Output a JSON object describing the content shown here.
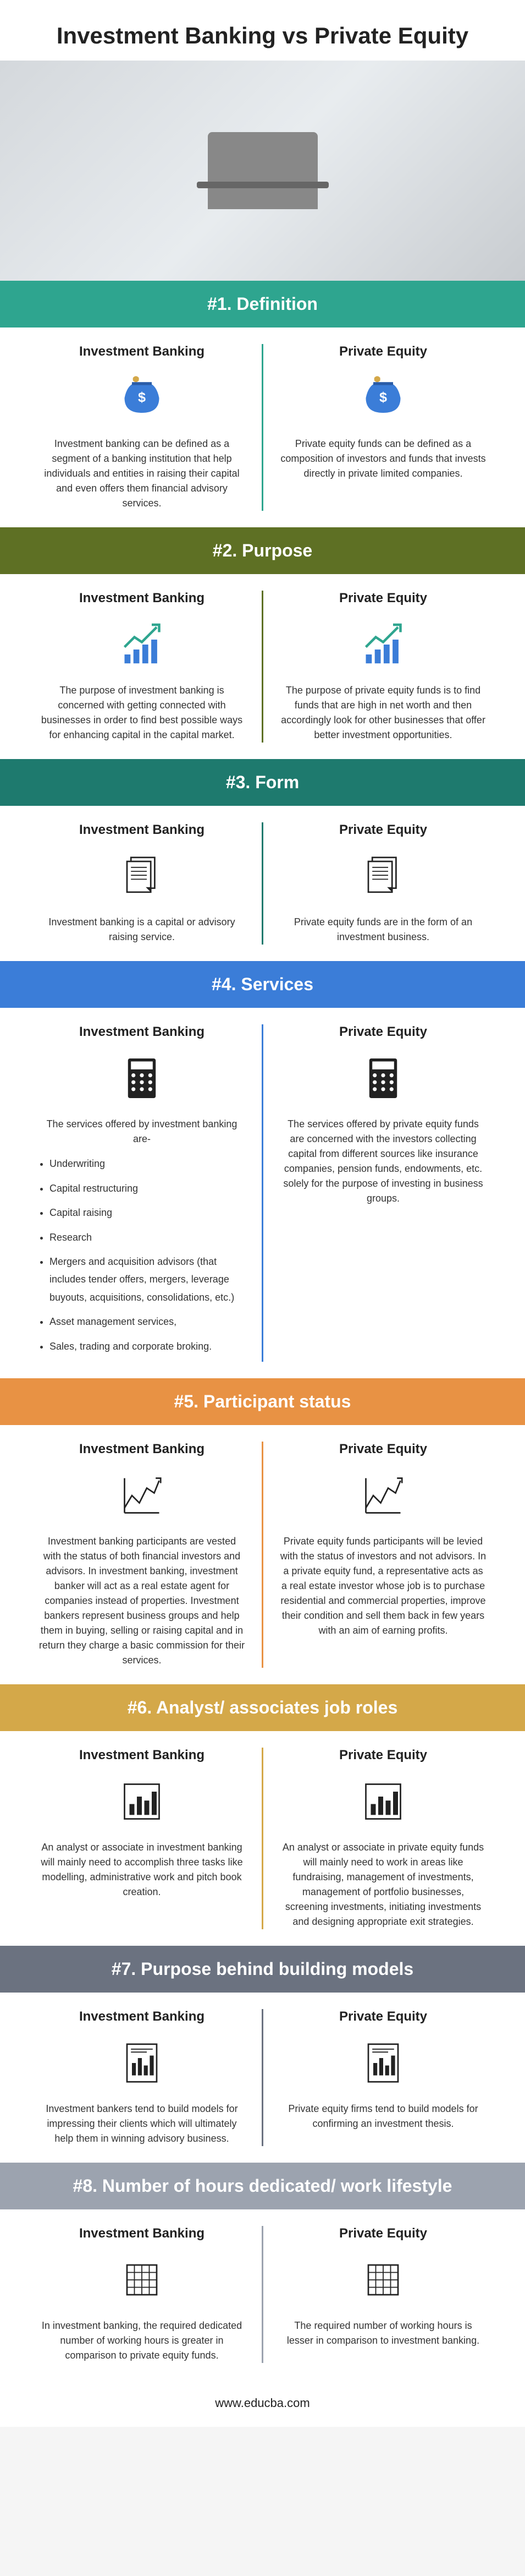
{
  "title": "Investment Banking vs Private Equity",
  "footer": "www.educba.com",
  "colors": {
    "teal": "#2ea58f",
    "olive": "#5e7024",
    "darkteal": "#1e7a6e",
    "blue": "#3b7dd8",
    "orange": "#e89244",
    "gold": "#d4a849",
    "gray": "#6b7280",
    "lightgray": "#9ca3af"
  },
  "column_labels": {
    "left": "Investment Banking",
    "right": "Private Equity"
  },
  "sections": [
    {
      "id": "definition",
      "heading": "#1. Definition",
      "header_bg": "teal",
      "divider_bg": "teal",
      "icon": "moneybag",
      "left": "Investment banking can be defined as a segment of a banking institution that help individuals and entities in raising their capital and even offers them financial advisory services.",
      "right": "Private equity funds can be defined as a composition of investors and funds that invests directly in private limited companies."
    },
    {
      "id": "purpose",
      "heading": "#2. Purpose",
      "header_bg": "olive",
      "divider_bg": "olive",
      "icon": "arrowchart",
      "left": "The purpose of investment banking is concerned with getting connected with businesses in order to find best possible ways for enhancing capital in the capital market.",
      "right": "The purpose of private equity funds is to find funds that are high in net worth and then accordingly look for other businesses that offer better investment opportunities."
    },
    {
      "id": "form",
      "heading": "#3. Form",
      "header_bg": "darkteal",
      "divider_bg": "darkteal",
      "icon": "documents",
      "left": "Investment banking is a capital or advisory raising service.",
      "right": "Private equity funds are in the form of an investment business."
    },
    {
      "id": "services",
      "heading": "#4. Services",
      "header_bg": "blue",
      "divider_bg": "blue",
      "icon": "calculator",
      "left_intro": "The services offered by investment banking are-",
      "left_list": [
        "Underwriting",
        "Capital restructuring",
        "Capital raising",
        "Research",
        "Mergers and acquisition advisors (that includes tender offers, mergers, leverage buyouts, acquisitions, consolidations, etc.)",
        "Asset management services,",
        "Sales, trading and corporate broking."
      ],
      "right": "The services offered by private equity funds are concerned with the investors collecting capital from different sources like insurance companies, pension funds, endowments, etc. solely for the purpose of investing in business groups."
    },
    {
      "id": "participant",
      "heading": "#5. Participant status",
      "header_bg": "orange",
      "divider_bg": "orange",
      "icon": "linechart",
      "left": "Investment banking participants are vested with the status of both financial investors and advisors. In investment banking, investment banker will act as a real estate agent for companies instead of properties. Investment bankers represent business groups and help them in buying, selling or raising capital and in return they charge a basic commission for their services.",
      "right": "Private equity funds participants will be levied with the status of investors and not advisors. In a private equity fund, a representative acts as a real estate investor whose job is to purchase residential and commercial properties, improve their condition and sell them back in few years with an aim of earning profits."
    },
    {
      "id": "analyst",
      "heading": "#6. Analyst/ associates job roles",
      "header_bg": "gold",
      "divider_bg": "gold",
      "icon": "barchart",
      "left": "An analyst or associate in investment banking will mainly need to accomplish three tasks like modelling, administrative work and pitch book creation.",
      "right": "An analyst or associate in private equity funds will mainly need to work in areas like fundraising, management of investments, management of portfolio businesses, screening investments, initiating investments and designing appropriate exit strategies."
    },
    {
      "id": "models",
      "heading": "#7. Purpose behind building models",
      "header_bg": "gray",
      "divider_bg": "gray",
      "icon": "barpaper",
      "left": "Investment bankers tend to build models for impressing their clients which will ultimately help them in winning advisory business.",
      "right": "Private equity firms tend to build models for confirming an investment thesis."
    },
    {
      "id": "hours",
      "heading": "#8. Number of hours dedicated/ work lifestyle",
      "header_bg": "lightgray",
      "divider_bg": "lightgray",
      "icon": "grid",
      "left": "In investment banking, the required dedicated number of working hours is greater in comparison to private equity funds.",
      "right": "The required number of working hours is lesser in comparison to investment banking."
    }
  ]
}
